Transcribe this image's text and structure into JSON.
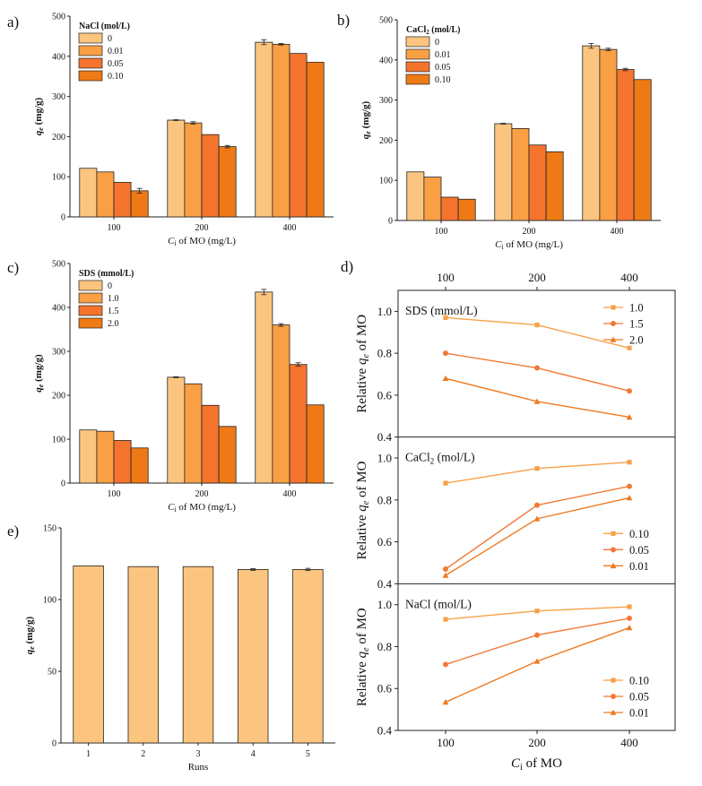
{
  "colors": {
    "c1": "#fcc57f",
    "c2": "#f99f44",
    "c3": "#f4742e",
    "c4": "#ee7a16",
    "line1": "#f8a048",
    "line2": "#f27935",
    "line3": "#ee7a1f"
  },
  "chart_data": [
    {
      "type": "bar",
      "panel": "a)",
      "legend_title": "NaCl (mol/L)",
      "categories": [
        "100",
        "200",
        "400"
      ],
      "xlabel": "C",
      "xlabel_sub": "i",
      "xlabel_rest": " of MO (mg/L)",
      "ylabel": "q",
      "ylabel_sub": "e",
      "ylabel_rest": " (mg/g)",
      "ylim": [
        0,
        500
      ],
      "yticks": [
        "0",
        "100",
        "200",
        "300",
        "400",
        "500"
      ],
      "series": [
        {
          "name": "0",
          "values": [
            121,
            241,
            435
          ],
          "errors": [
            0,
            1,
            6
          ]
        },
        {
          "name": "0.01",
          "values": [
            112,
            234,
            430
          ],
          "errors": [
            0,
            3,
            2
          ]
        },
        {
          "name": "0.05",
          "values": [
            86,
            205,
            407
          ],
          "errors": [
            0,
            0,
            0
          ]
        },
        {
          "name": "0.10",
          "values": [
            65,
            175,
            385
          ],
          "errors": [
            6,
            3,
            0
          ]
        }
      ]
    },
    {
      "type": "bar",
      "panel": "b)",
      "legend_title": "CaCl",
      "legend_title_sub": "2",
      "legend_title_rest": " (mol/L)",
      "categories": [
        "100",
        "200",
        "400"
      ],
      "xlabel": "C",
      "xlabel_sub": "i",
      "xlabel_rest": " of MO (mg/L)",
      "ylabel": "q",
      "ylabel_sub": "e",
      "ylabel_rest": " (mg/g)",
      "ylim": [
        0,
        500
      ],
      "yticks": [
        "0",
        "100",
        "200",
        "300",
        "400",
        "500"
      ],
      "series": [
        {
          "name": "0",
          "values": [
            121,
            241,
            435
          ],
          "errors": [
            0,
            1,
            6
          ]
        },
        {
          "name": "0.01",
          "values": [
            108,
            229,
            426
          ],
          "errors": [
            0,
            0,
            3
          ]
        },
        {
          "name": "0.05",
          "values": [
            58,
            188,
            376
          ],
          "errors": [
            0,
            0,
            3
          ]
        },
        {
          "name": "0.10",
          "values": [
            53,
            171,
            351
          ],
          "errors": [
            0,
            0,
            0
          ]
        }
      ]
    },
    {
      "type": "bar",
      "panel": "c)",
      "legend_title": "SDS (mmol/L)",
      "categories": [
        "100",
        "200",
        "400"
      ],
      "xlabel": "C",
      "xlabel_sub": "i",
      "xlabel_rest": " of MO (mg/L)",
      "ylabel": "q",
      "ylabel_sub": "e",
      "ylabel_rest": " (mg/g)",
      "ylim": [
        0,
        500
      ],
      "yticks": [
        "0",
        "100",
        "200",
        "300",
        "400",
        "500"
      ],
      "series": [
        {
          "name": "0",
          "values": [
            121,
            241,
            435
          ],
          "errors": [
            0,
            1,
            6
          ]
        },
        {
          "name": "1.0",
          "values": [
            118,
            226,
            360
          ],
          "errors": [
            0,
            0,
            3
          ]
        },
        {
          "name": "1.5",
          "values": [
            97,
            177,
            270
          ],
          "errors": [
            0,
            0,
            4
          ]
        },
        {
          "name": "2.0",
          "values": [
            80,
            129,
            178
          ],
          "errors": [
            0,
            0,
            0
          ]
        }
      ]
    },
    {
      "type": "bar",
      "panel": "e)",
      "categories": [
        "1",
        "2",
        "3",
        "4",
        "5"
      ],
      "xlabel": "Runs",
      "ylabel": "q",
      "ylabel_sub": "e",
      "ylabel_rest": " (mg/g)",
      "ylim": [
        0,
        150
      ],
      "yticks": [
        "0",
        "50",
        "100",
        "150"
      ],
      "series": [
        {
          "values": [
            123.5,
            123,
            123,
            121,
            121
          ],
          "errors": [
            0,
            0,
            0,
            0.6,
            0.8
          ]
        }
      ]
    },
    {
      "type": "line",
      "panel": "d)",
      "x": [
        100,
        200,
        400
      ],
      "xticks": [
        "100",
        "200",
        "400"
      ],
      "xlabel": "C",
      "xlabel_sub": "i",
      "xlabel_rest": " of MO",
      "ylabel": "Relative ",
      "ylabel_q": "q",
      "ylabel_sub": "e",
      "ylabel_rest": " of MO",
      "ylim": [
        0.4,
        1.1
      ],
      "yticks": [
        "0.4",
        "0.6",
        "0.8",
        "1.0"
      ],
      "panels": [
        {
          "title": "SDS (mmol/L)",
          "series": [
            {
              "name": "1.0",
              "marker": "square",
              "values": [
                0.97,
                0.935,
                0.825
              ]
            },
            {
              "name": "1.5",
              "marker": "circle",
              "values": [
                0.8,
                0.73,
                0.62
              ]
            },
            {
              "name": "2.0",
              "marker": "triangle",
              "values": [
                0.68,
                0.57,
                0.495
              ]
            }
          ]
        },
        {
          "title": "CaCl",
          "title_sub": "2",
          "title_rest": " (mol/L)",
          "series": [
            {
              "name": "0.10",
              "marker": "square",
              "values": [
                0.88,
                0.95,
                0.98
              ]
            },
            {
              "name": "0.05",
              "marker": "circle",
              "values": [
                0.47,
                0.775,
                0.865
              ]
            },
            {
              "name": "0.01",
              "marker": "triangle",
              "values": [
                0.44,
                0.71,
                0.81
              ]
            }
          ]
        },
        {
          "title": "NaCl (mol/L)",
          "series": [
            {
              "name": "0.10",
              "marker": "square",
              "values": [
                0.93,
                0.97,
                0.99
              ]
            },
            {
              "name": "0.05",
              "marker": "circle",
              "values": [
                0.715,
                0.855,
                0.935
              ]
            },
            {
              "name": "0.01",
              "marker": "triangle",
              "values": [
                0.535,
                0.73,
                0.89
              ]
            }
          ]
        }
      ]
    }
  ]
}
